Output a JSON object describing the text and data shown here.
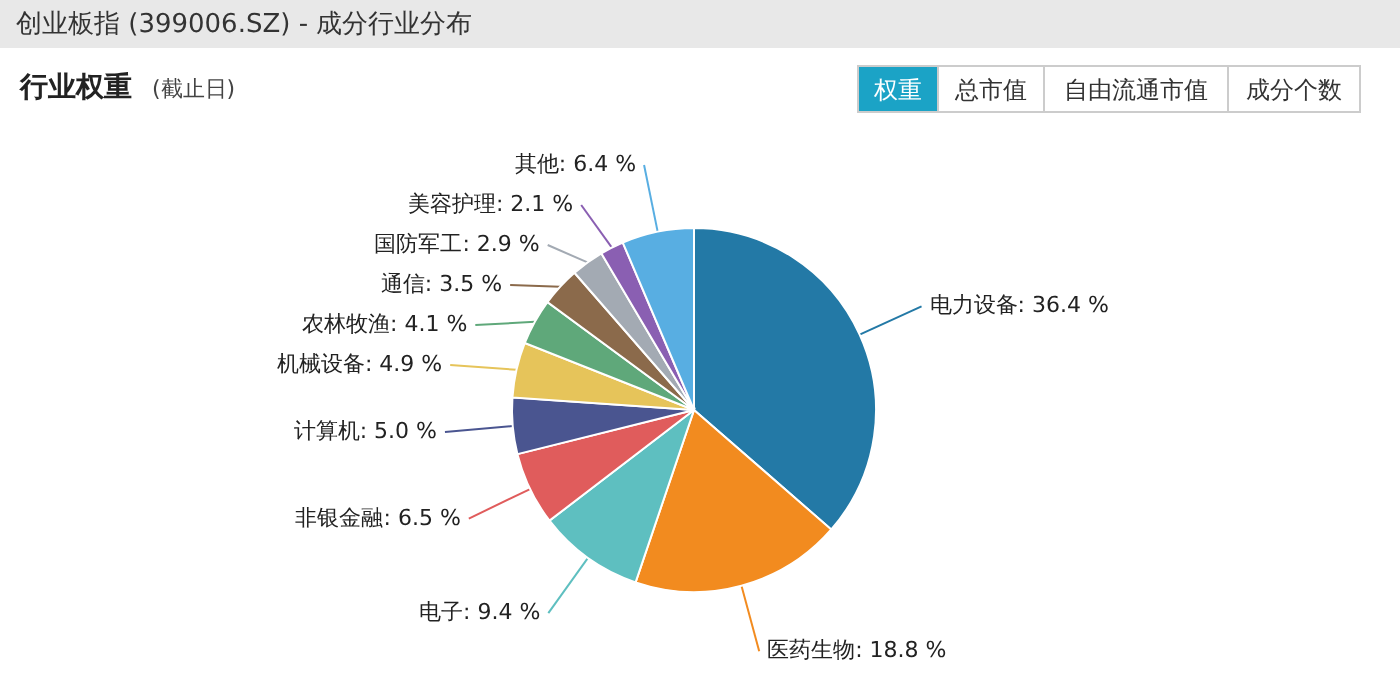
{
  "chart_data": {
    "type": "pie",
    "title": "创业板指 (399006.SZ) - 成分行业分布",
    "subtitle": "行业权重",
    "annotations": [
      "(截止日)",
      "权重",
      "总市值",
      "自由流通市值",
      "成分个数"
    ],
    "categories": [
      "电力设备",
      "医药生物",
      "电子",
      "非银金融",
      "计算机",
      "机械设备",
      "农林牧渔",
      "通信",
      "国防军工",
      "美容护理",
      "其他"
    ],
    "values": [
      36.4,
      18.8,
      9.4,
      6.5,
      5.0,
      4.9,
      4.1,
      3.5,
      2.9,
      2.1,
      6.4
    ],
    "value_labels": [
      "36.4 %",
      "18.8 %",
      "9.4 %",
      "6.5 %",
      "5.0 %",
      "4.9 %",
      "4.1 %",
      "3.5 %",
      "2.9 %",
      "2.1 %",
      "6.4 %"
    ],
    "colors": [
      "#2379a6",
      "#f28b1f",
      "#5ebfc0",
      "#e05c5c",
      "#4a5590",
      "#e6c45a",
      "#5fa87a",
      "#8b6a4b",
      "#a3aab3",
      "#8a5fb2",
      "#58aee2"
    ]
  }
}
